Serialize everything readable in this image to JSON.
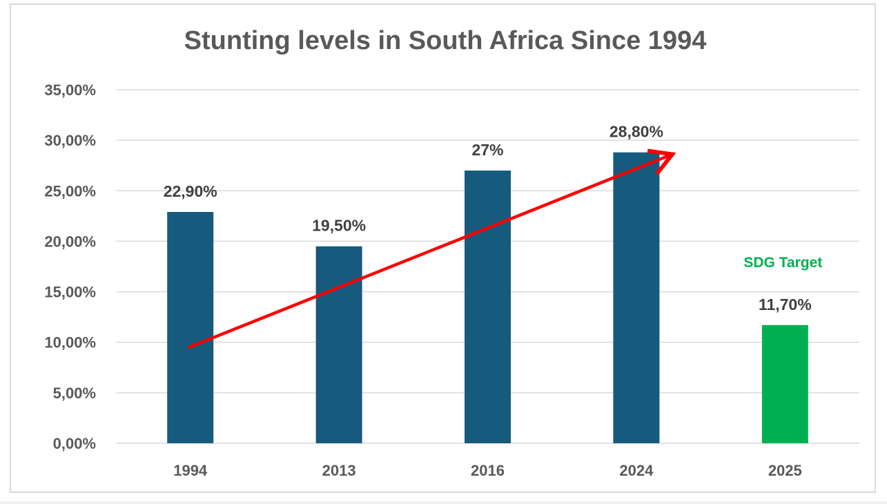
{
  "chart_data": {
    "type": "bar",
    "title": "Stunting levels in South Africa Since 1994",
    "categories": [
      "1994",
      "2013",
      "2016",
      "2024",
      "2025"
    ],
    "values": [
      22.9,
      19.5,
      27.0,
      28.8,
      11.7
    ],
    "data_labels": [
      "22,90%",
      "19,50%",
      "27%",
      "28,80%",
      "11,70%"
    ],
    "bar_colors": [
      "#165a7e",
      "#165a7e",
      "#165a7e",
      "#165a7e",
      "#00b050"
    ],
    "ylim": [
      0,
      35
    ],
    "yticks": [
      0,
      5,
      10,
      15,
      20,
      25,
      30,
      35
    ],
    "ytick_labels": [
      "0,00%",
      "5,00%",
      "10,00%",
      "15,00%",
      "20,00%",
      "25,00%",
      "30,00%",
      "35,00%"
    ],
    "xlabel": "",
    "ylabel": "",
    "grid": true,
    "annotations": [
      {
        "text": "SDG Target",
        "category": "2025",
        "color": "#00b050"
      }
    ],
    "trend_arrow": {
      "color": "#ff0000",
      "from": {
        "category": "1994",
        "value": 9.5
      },
      "to": {
        "category": "2024",
        "value": 28.5
      }
    }
  }
}
